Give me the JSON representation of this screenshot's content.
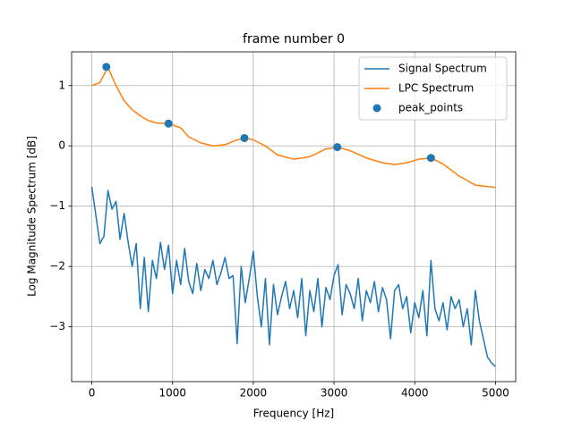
{
  "chart_data": {
    "type": "line",
    "title": "frame number 0",
    "xlabel": "Frequency [Hz]",
    "ylabel": "Log Magnitude Spectrum [dB]",
    "xlim": [
      -250,
      5250
    ],
    "ylim": [
      -3.91,
      1.56
    ],
    "xticks": [
      0,
      1000,
      2000,
      3000,
      4000,
      5000
    ],
    "yticks": [
      {
        "value": -3,
        "label": "−3"
      },
      {
        "value": -2,
        "label": "−2"
      },
      {
        "value": -1,
        "label": "−1"
      },
      0,
      1
    ],
    "grid": true,
    "legend": "upper right",
    "series": [
      {
        "name": "Signal Spectrum",
        "type": "line",
        "color": "#1f77b4",
        "x": [
          0,
          50,
          100,
          150,
          200,
          250,
          300,
          350,
          400,
          450,
          500,
          550,
          600,
          650,
          700,
          750,
          800,
          850,
          900,
          950,
          1000,
          1050,
          1100,
          1150,
          1200,
          1250,
          1300,
          1350,
          1400,
          1450,
          1500,
          1550,
          1600,
          1650,
          1700,
          1750,
          1800,
          1850,
          1900,
          1950,
          2000,
          2050,
          2100,
          2150,
          2200,
          2250,
          2300,
          2350,
          2400,
          2450,
          2500,
          2550,
          2600,
          2650,
          2700,
          2750,
          2800,
          2850,
          2900,
          2950,
          3000,
          3050,
          3100,
          3150,
          3200,
          3250,
          3300,
          3350,
          3400,
          3450,
          3500,
          3550,
          3600,
          3650,
          3700,
          3750,
          3800,
          3850,
          3900,
          3950,
          4000,
          4050,
          4100,
          4150,
          4200,
          4250,
          4300,
          4350,
          4400,
          4450,
          4500,
          4550,
          4600,
          4650,
          4700,
          4750,
          4800,
          4850,
          4900,
          4950,
          5000
        ],
        "values": [
          -0.68,
          -1.15,
          -1.62,
          -1.5,
          -0.74,
          -1.05,
          -0.92,
          -1.55,
          -1.12,
          -1.6,
          -2.0,
          -1.62,
          -2.7,
          -1.85,
          -2.75,
          -1.9,
          -2.2,
          -1.6,
          -2.05,
          -1.65,
          -2.45,
          -1.9,
          -2.3,
          -1.7,
          -2.25,
          -2.45,
          -1.95,
          -2.4,
          -2.05,
          -2.2,
          -1.9,
          -2.3,
          -2.1,
          -1.85,
          -2.2,
          -2.15,
          -3.28,
          -2.0,
          -2.6,
          -2.2,
          -1.75,
          -2.5,
          -3.0,
          -2.2,
          -3.3,
          -2.3,
          -2.8,
          -2.5,
          -2.25,
          -2.7,
          -2.4,
          -2.85,
          -2.2,
          -3.15,
          -2.4,
          -2.75,
          -2.2,
          -3.0,
          -2.35,
          -2.55,
          -2.15,
          -1.97,
          -2.8,
          -2.3,
          -2.45,
          -2.7,
          -2.2,
          -2.9,
          -2.4,
          -2.6,
          -2.25,
          -2.75,
          -2.35,
          -2.55,
          -3.2,
          -2.4,
          -2.3,
          -2.7,
          -2.5,
          -3.1,
          -2.6,
          -2.85,
          -2.4,
          -3.15,
          -1.9,
          -2.7,
          -2.9,
          -2.6,
          -3.05,
          -2.5,
          -2.7,
          -2.55,
          -3.0,
          -2.7,
          -3.3,
          -2.4,
          -2.9,
          -3.2,
          -3.5,
          -3.6,
          -3.66
        ]
      },
      {
        "name": "LPC Spectrum",
        "type": "line",
        "color": "#ff7f0e",
        "x": [
          0,
          100,
          200,
          300,
          400,
          500,
          600,
          700,
          800,
          950,
          1100,
          1200,
          1350,
          1500,
          1650,
          1800,
          1900,
          2000,
          2150,
          2300,
          2500,
          2700,
          2900,
          3050,
          3200,
          3400,
          3600,
          3750,
          3900,
          4050,
          4200,
          4350,
          4550,
          4750,
          5000
        ],
        "values": [
          1.0,
          1.05,
          1.3,
          1.0,
          0.75,
          0.6,
          0.5,
          0.42,
          0.38,
          0.37,
          0.3,
          0.15,
          0.05,
          0.0,
          0.02,
          0.1,
          0.13,
          0.1,
          0.0,
          -0.15,
          -0.22,
          -0.18,
          -0.05,
          -0.02,
          -0.08,
          -0.2,
          -0.28,
          -0.31,
          -0.28,
          -0.22,
          -0.2,
          -0.3,
          -0.5,
          -0.65,
          -0.69
        ]
      },
      {
        "name": "peak_points",
        "type": "scatter",
        "color": "#1f77b4",
        "x": [
          180,
          950,
          1890,
          3040,
          4200
        ],
        "values": [
          1.31,
          0.37,
          0.13,
          -0.02,
          -0.2
        ]
      }
    ]
  }
}
